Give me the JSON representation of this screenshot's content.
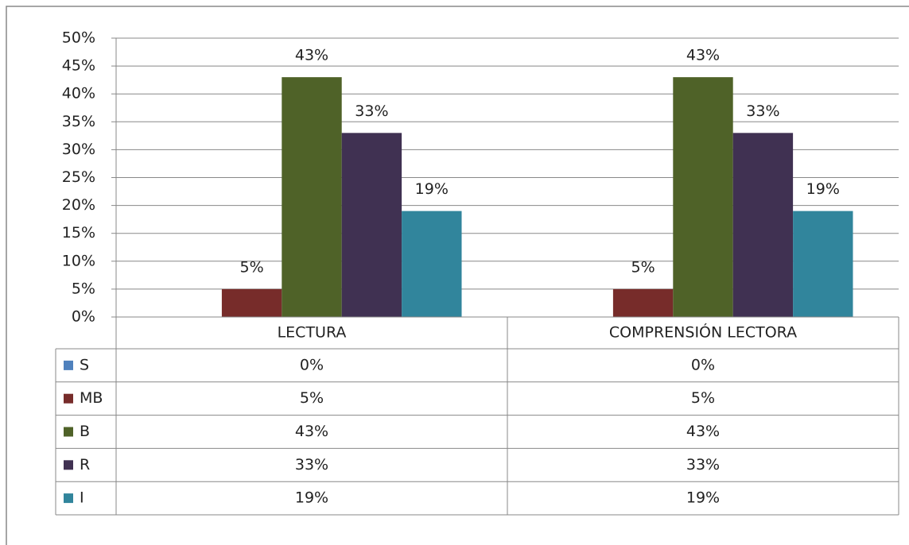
{
  "chart_data": {
    "type": "bar",
    "categories": [
      "LECTURA",
      "COMPRENSIÓN LECTORA"
    ],
    "series": [
      {
        "name": "S",
        "color": "#4f81bd",
        "values": [
          0,
          0
        ],
        "value_labels": [
          "0%",
          "0%"
        ]
      },
      {
        "name": "MB",
        "color": "#772c2a",
        "values": [
          5,
          5
        ],
        "value_labels": [
          "5%",
          "5%"
        ]
      },
      {
        "name": "B",
        "color": "#4f6228",
        "values": [
          43,
          43
        ],
        "value_labels": [
          "43%",
          "43%"
        ]
      },
      {
        "name": "R",
        "color": "#403152",
        "values": [
          33,
          33
        ],
        "value_labels": [
          "33%",
          "33%"
        ]
      },
      {
        "name": "I",
        "color": "#31859c",
        "values": [
          19,
          19
        ],
        "value_labels": [
          "19%",
          "19%"
        ]
      }
    ],
    "ylim": [
      0,
      50
    ],
    "yticks": [
      {
        "value": 0,
        "label": "0%"
      },
      {
        "value": 5,
        "label": "5%"
      },
      {
        "value": 10,
        "label": "10%"
      },
      {
        "value": 15,
        "label": "15%"
      },
      {
        "value": 20,
        "label": "20%"
      },
      {
        "value": 25,
        "label": "25%"
      },
      {
        "value": 30,
        "label": "30%"
      },
      {
        "value": 35,
        "label": "35%"
      },
      {
        "value": 40,
        "label": "40%"
      },
      {
        "value": 45,
        "label": "45%"
      },
      {
        "value": 50,
        "label": "50%"
      }
    ],
    "grid": true,
    "data_table": true
  }
}
